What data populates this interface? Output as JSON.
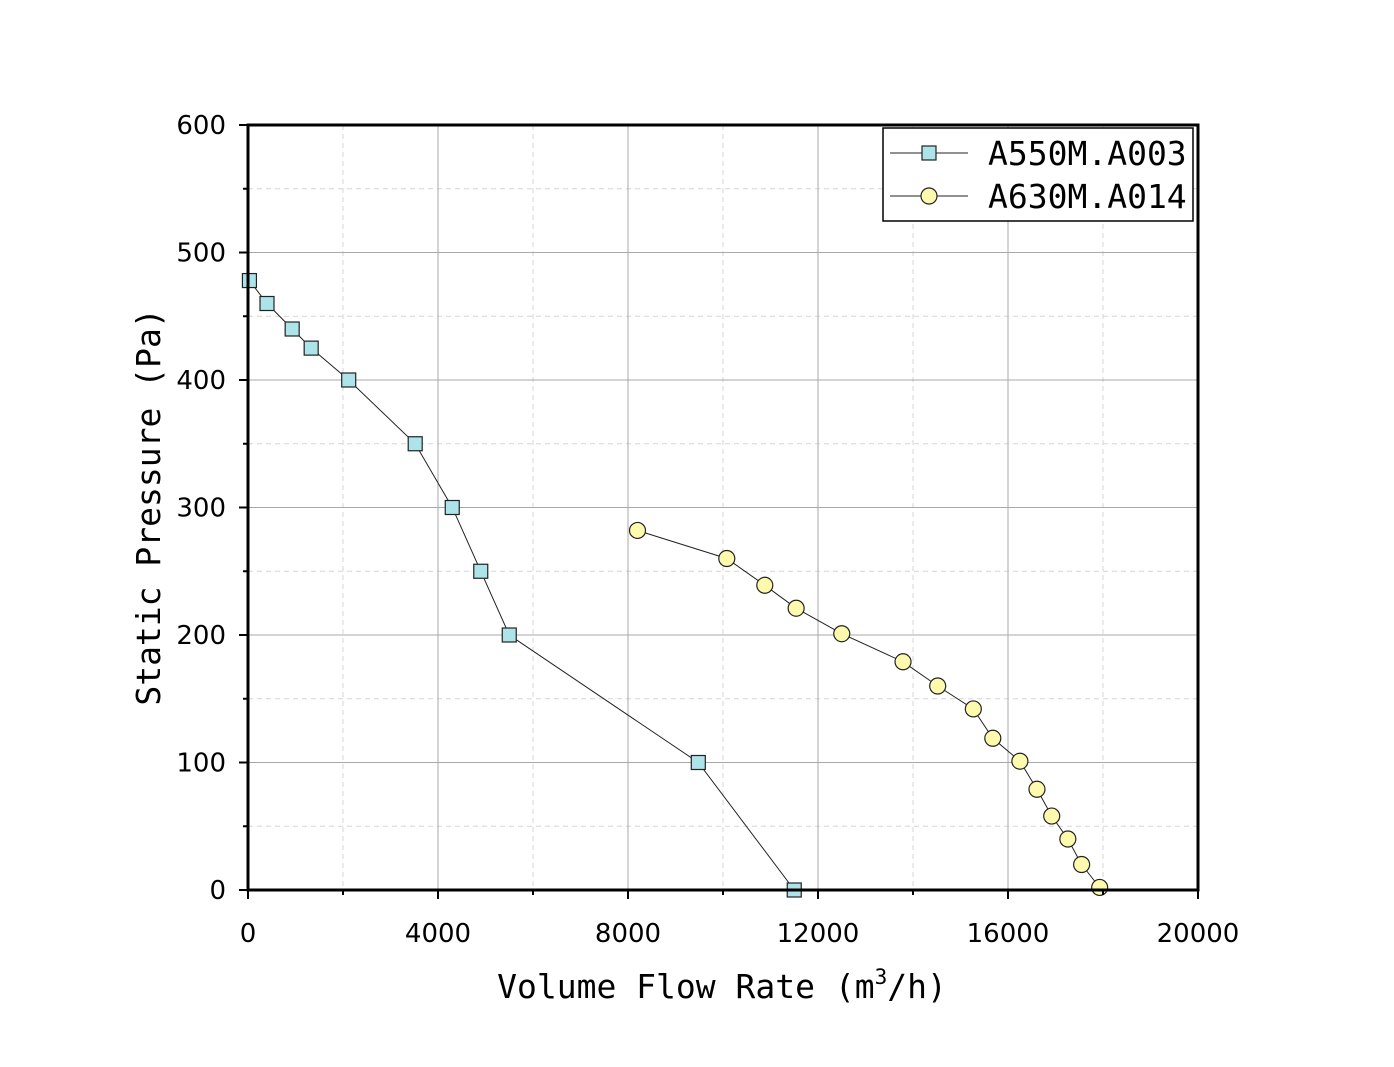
{
  "chart_data": {
    "type": "line",
    "title": "",
    "xlabel": {
      "prefix": "Volume Flow Rate (m",
      "superscript": "3",
      "suffix": "/h)"
    },
    "ylabel": "Static Pressure (Pa)",
    "xlim": [
      0,
      20000
    ],
    "ylim": [
      0,
      600
    ],
    "xticks": [
      0,
      4000,
      8000,
      12000,
      16000,
      20000
    ],
    "xtick_labels": [
      "0",
      "4000",
      "8000",
      "12000",
      "16000",
      "20000"
    ],
    "yticks": [
      0,
      100,
      200,
      300,
      400,
      500,
      600
    ],
    "ytick_labels": [
      "0",
      "100",
      "200",
      "300",
      "400",
      "500",
      "600"
    ],
    "grid": true,
    "legend_position": "top-right",
    "series": [
      {
        "name": "A550M.A003",
        "marker": "square",
        "fill": "#ace4ea",
        "x": [
          30,
          400,
          930,
          1330,
          2120,
          3520,
          4300,
          4900,
          5500,
          9480,
          11500
        ],
        "y": [
          478,
          460,
          440,
          425,
          400,
          350,
          300,
          250,
          200,
          100,
          0
        ]
      },
      {
        "name": "A630M.A014",
        "marker": "circle",
        "fill": "#fdfaad",
        "x": [
          8200,
          10080,
          10880,
          11540,
          12500,
          13790,
          14520,
          15270,
          15680,
          16250,
          16610,
          16920,
          17260,
          17550,
          17930
        ],
        "y": [
          282,
          260,
          239,
          221,
          201,
          179,
          160,
          142,
          119,
          101,
          79,
          58,
          40,
          20,
          2
        ]
      }
    ]
  }
}
